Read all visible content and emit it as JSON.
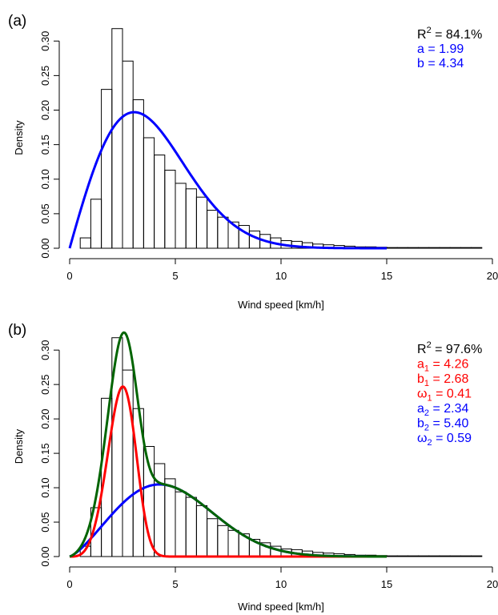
{
  "chart_data": [
    {
      "type": "bar",
      "panel_label": "(a)",
      "xlabel": "Wind speed [km/h]",
      "ylabel": "Density",
      "xlim": [
        0,
        20
      ],
      "ylim": [
        0,
        0.32
      ],
      "x_ticks": [
        "0",
        "5",
        "10",
        "15",
        "20"
      ],
      "y_ticks": [
        "0.00",
        "0.05",
        "0.10",
        "0.15",
        "0.20",
        "0.25",
        "0.30"
      ],
      "bins": {
        "start": 0.5,
        "width": 0.5,
        "values": [
          0.015,
          0.071,
          0.23,
          0.318,
          0.271,
          0.215,
          0.16,
          0.135,
          0.113,
          0.094,
          0.086,
          0.074,
          0.055,
          0.045,
          0.038,
          0.033,
          0.025,
          0.02,
          0.015,
          0.011,
          0.01,
          0.008,
          0.006,
          0.005,
          0.004,
          0.003,
          0.002,
          0.002,
          0.0015,
          0.001,
          0.001,
          0.001,
          0.001,
          0.001,
          0.001,
          0.001,
          0.001,
          0.001
        ]
      },
      "curves": [
        {
          "kind": "weibull",
          "a": 1.99,
          "b": 4.34,
          "weight": 1.0,
          "color": "#0000ff",
          "x_range": [
            0,
            15
          ]
        }
      ],
      "annotations": [
        {
          "base": "R",
          "sup": "2",
          "text": " = 84.1%",
          "color": "#000000"
        },
        {
          "text": "a = 1.99",
          "color": "#0000ff"
        },
        {
          "text": "b = 4.34",
          "color": "#0000ff"
        }
      ]
    },
    {
      "type": "bar",
      "panel_label": "(b)",
      "xlabel": "Wind speed [km/h]",
      "ylabel": "Density",
      "xlim": [
        0,
        20
      ],
      "ylim": [
        0,
        0.32
      ],
      "x_ticks": [
        "0",
        "5",
        "10",
        "15",
        "20"
      ],
      "y_ticks": [
        "0.00",
        "0.05",
        "0.10",
        "0.15",
        "0.20",
        "0.25",
        "0.30"
      ],
      "bins": {
        "start": 0.5,
        "width": 0.5,
        "values": [
          0.015,
          0.071,
          0.23,
          0.318,
          0.271,
          0.215,
          0.16,
          0.135,
          0.113,
          0.094,
          0.086,
          0.074,
          0.055,
          0.045,
          0.038,
          0.033,
          0.025,
          0.02,
          0.015,
          0.011,
          0.01,
          0.008,
          0.006,
          0.005,
          0.004,
          0.003,
          0.002,
          0.002,
          0.0015,
          0.001,
          0.001,
          0.001,
          0.001,
          0.001,
          0.001,
          0.001,
          0.001,
          0.001
        ]
      },
      "curves": [
        {
          "kind": "weibull",
          "a": 2.34,
          "b": 5.4,
          "weight": 0.59,
          "color": "#0000ff",
          "x_range": [
            0,
            15
          ]
        },
        {
          "kind": "weibull",
          "a": 4.26,
          "b": 2.68,
          "weight": 0.41,
          "color": "#ff0000",
          "x_range": [
            0,
            15
          ]
        },
        {
          "kind": "mixture",
          "color": "#006400",
          "x_range": [
            0,
            15
          ]
        }
      ],
      "annotations": [
        {
          "base": "R",
          "sup": "2",
          "text": " = 97.6%",
          "color": "#000000"
        },
        {
          "base": "a",
          "sub": "1",
          "text": " = 4.26",
          "color": "#ff0000"
        },
        {
          "base": "b",
          "sub": "1",
          "text": " = 2.68",
          "color": "#ff0000"
        },
        {
          "base": "ω",
          "sub": "1",
          "text": " = 0.41",
          "color": "#ff0000"
        },
        {
          "base": "a",
          "sub": "2",
          "text": " = 2.34",
          "color": "#0000ff"
        },
        {
          "base": "b",
          "sub": "2",
          "text": " = 5.40",
          "color": "#0000ff"
        },
        {
          "base": "ω",
          "sub": "2",
          "text": " = 0.59",
          "color": "#0000ff"
        }
      ]
    }
  ]
}
